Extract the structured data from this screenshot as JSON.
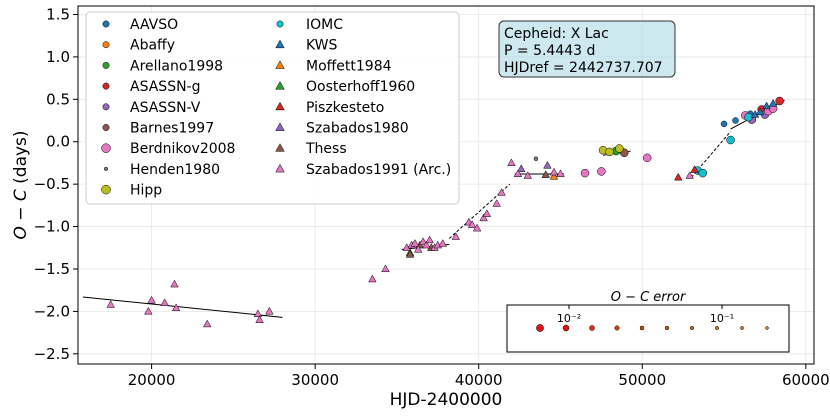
{
  "chart_data": {
    "type": "scatter",
    "xlabel": "HJD-2400000",
    "ylabel_main": "O − C",
    "ylabel_unit": "(days)",
    "xlim": [
      15500,
      60500
    ],
    "ylim": [
      -2.62,
      1.6
    ],
    "xticks": [
      20000,
      30000,
      40000,
      50000,
      60000
    ],
    "xtick_labels": [
      "20000",
      "30000",
      "40000",
      "50000",
      "60000"
    ],
    "yticks": [
      -2.5,
      -2.0,
      -1.5,
      -1.0,
      -0.5,
      0.0,
      0.5,
      1.0,
      1.5
    ],
    "ytick_labels": [
      "−2.5",
      "−2.0",
      "−1.5",
      "−1.0",
      "−0.5",
      "0.0",
      "0.5",
      "1.0",
      "1.5"
    ],
    "grid": true,
    "legend_position": "top-left",
    "info_box": {
      "line1": "Cepheid: X Lac",
      "line2": "P = 5.4443 d",
      "line3": "HJDref = 2442737.707"
    },
    "error_legend": {
      "title": "O − C error",
      "tick1": "10⁻²",
      "tick2": "10⁻¹"
    },
    "series": [
      {
        "name": "AAVSO",
        "marker": "circle",
        "color": "#1f77b4",
        "points": [
          [
            55000,
            0.21
          ],
          [
            55700,
            0.25
          ],
          [
            56600,
            0.33
          ]
        ]
      },
      {
        "name": "Abaffy",
        "marker": "circle",
        "color": "#ff7f0e",
        "points": []
      },
      {
        "name": "Arellano1998",
        "marker": "circle",
        "color": "#2ca02c",
        "points": [
          [
            48400,
            -0.11
          ]
        ]
      },
      {
        "name": "ASASSN-g",
        "marker": "circle",
        "color": "#d62728",
        "points": [
          [
            57300,
            0.38
          ],
          [
            58400,
            0.48
          ]
        ]
      },
      {
        "name": "ASASSN-V",
        "marker": "circle",
        "color": "#9467bd",
        "points": [
          [
            56700,
            0.26
          ],
          [
            57500,
            0.32
          ]
        ]
      },
      {
        "name": "Barnes1997",
        "marker": "circle",
        "color": "#8c564b",
        "points": [
          [
            48900,
            -0.13
          ]
        ]
      },
      {
        "name": "Berdnikov2008",
        "marker": "circle",
        "color": "#e377c2",
        "points": [
          [
            46500,
            -0.37
          ],
          [
            47500,
            -0.35
          ],
          [
            50300,
            -0.19
          ],
          [
            56300,
            0.31
          ],
          [
            57700,
            0.36
          ],
          [
            58000,
            0.39
          ]
        ]
      },
      {
        "name": "Henden1980",
        "marker": "circle",
        "color": "#7f7f7f",
        "points": [
          [
            43500,
            -0.2
          ]
        ]
      },
      {
        "name": "Hipp",
        "marker": "circle",
        "color": "#bcbd22",
        "points": [
          [
            47600,
            -0.1
          ],
          [
            48000,
            -0.12
          ],
          [
            48600,
            -0.08
          ]
        ]
      },
      {
        "name": "IOMC",
        "marker": "circle",
        "color": "#17becf",
        "points": [
          [
            53400,
            -0.34
          ],
          [
            53700,
            -0.37
          ],
          [
            55400,
            0.02
          ],
          [
            56500,
            0.29
          ]
        ]
      },
      {
        "name": "KWS",
        "marker": "triangle",
        "color": "#1f77b4",
        "points": [
          [
            56900,
            0.32
          ],
          [
            57200,
            0.35
          ],
          [
            57600,
            0.42
          ],
          [
            58000,
            0.45
          ]
        ]
      },
      {
        "name": "Moffett1984",
        "marker": "triangle",
        "color": "#ff7f0e",
        "points": [
          [
            44600,
            -0.41
          ]
        ]
      },
      {
        "name": "Oosterhoff1960",
        "marker": "triangle",
        "color": "#2ca02c",
        "points": [
          [
            35800,
            -1.31
          ]
        ]
      },
      {
        "name": "Piszkesteto",
        "marker": "triangle",
        "color": "#d62728",
        "points": [
          [
            52200,
            -0.42
          ],
          [
            53200,
            -0.33
          ]
        ]
      },
      {
        "name": "Szabados1980",
        "marker": "triangle",
        "color": "#9467bd",
        "points": [
          [
            42600,
            -0.32
          ],
          [
            44200,
            -0.28
          ]
        ]
      },
      {
        "name": "Thess",
        "marker": "triangle",
        "color": "#8c564b",
        "points": [
          [
            35800,
            -1.33
          ],
          [
            36400,
            -1.22
          ],
          [
            37100,
            -1.25
          ],
          [
            44100,
            -0.39
          ]
        ]
      },
      {
        "name": "Szabados1991 (Arc.)",
        "marker": "triangle",
        "color": "#e377c2",
        "points": [
          [
            17500,
            -1.92
          ],
          [
            20000,
            -1.87
          ],
          [
            19800,
            -2.0
          ],
          [
            20800,
            -1.9
          ],
          [
            21400,
            -1.68
          ],
          [
            21500,
            -1.96
          ],
          [
            23400,
            -2.15
          ],
          [
            26500,
            -2.03
          ],
          [
            26600,
            -2.1
          ],
          [
            27200,
            -2.0
          ],
          [
            33500,
            -1.62
          ],
          [
            34300,
            -1.5
          ],
          [
            35600,
            -1.25
          ],
          [
            35900,
            -1.22
          ],
          [
            36100,
            -1.2
          ],
          [
            36300,
            -1.27
          ],
          [
            36600,
            -1.18
          ],
          [
            36800,
            -1.22
          ],
          [
            37000,
            -1.16
          ],
          [
            37300,
            -1.25
          ],
          [
            37500,
            -1.22
          ],
          [
            37800,
            -1.2
          ],
          [
            38600,
            -1.12
          ],
          [
            39400,
            -0.95
          ],
          [
            39600,
            -0.98
          ],
          [
            39900,
            -1.02
          ],
          [
            40300,
            -0.9
          ],
          [
            40500,
            -0.85
          ],
          [
            41100,
            -0.73
          ],
          [
            41400,
            -0.6
          ],
          [
            42000,
            -0.25
          ],
          [
            42400,
            -0.38
          ],
          [
            43000,
            -0.4
          ],
          [
            44600,
            -0.36
          ],
          [
            45000,
            -0.38
          ],
          [
            52900,
            -0.4
          ]
        ]
      }
    ],
    "fit_lines": [
      {
        "style": "solid",
        "points": [
          [
            15800,
            -1.83
          ],
          [
            28000,
            -2.07
          ]
        ]
      },
      {
        "style": "solid",
        "points": [
          [
            35300,
            -1.27
          ],
          [
            38200,
            -1.21
          ]
        ]
      },
      {
        "style": "dashed",
        "points": [
          [
            38200,
            -1.14
          ],
          [
            41900,
            -0.5
          ]
        ]
      },
      {
        "style": "solid",
        "points": [
          [
            42200,
            -0.38
          ],
          [
            45200,
            -0.38
          ]
        ]
      },
      {
        "style": "solid",
        "points": [
          [
            47600,
            -0.16
          ],
          [
            49300,
            -0.11
          ]
        ]
      },
      {
        "style": "dashed",
        "points": [
          [
            53000,
            -0.42
          ],
          [
            55400,
            0.12
          ]
        ]
      },
      {
        "style": "solid",
        "points": [
          [
            55400,
            0.15
          ],
          [
            58700,
            0.49
          ]
        ]
      }
    ]
  }
}
